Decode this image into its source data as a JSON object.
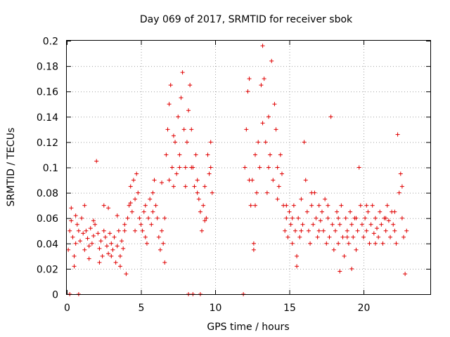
{
  "chart_data": {
    "type": "scatter",
    "title": "Day 069 of 2017, SRMTID for receiver sbok",
    "xlabel": "GPS time / hours",
    "ylabel": "SRMTID / TECUs",
    "xlim": [
      0,
      24.5
    ],
    "ylim": [
      0,
      0.2
    ],
    "xticks": [
      0,
      5,
      10,
      15,
      20
    ],
    "yticks": [
      0,
      0.02,
      0.04,
      0.06,
      0.08,
      0.1,
      0.12,
      0.14,
      0.16,
      0.18,
      0.2
    ],
    "xtick_labels": [
      "0",
      "5",
      "10",
      "15",
      "20"
    ],
    "ytick_labels": [
      "0",
      "0.02",
      "0.04",
      "0.06",
      "0.08",
      "0.1",
      "0.12",
      "0.14",
      "0.16",
      "0.18",
      "0.2"
    ],
    "grid": true,
    "marker": "+",
    "color": "#e00000",
    "series": [
      {
        "name": "SRMTID",
        "points": [
          [
            0.1,
            0.035
          ],
          [
            0.2,
            0.05
          ],
          [
            0.3,
            0.058
          ],
          [
            0.4,
            0.045
          ],
          [
            0.5,
            0.03
          ],
          [
            0.6,
            0.04
          ],
          [
            0.7,
            0.055
          ],
          [
            0.8,
            0.05
          ],
          [
            0.9,
            0.042
          ],
          [
            1.0,
            0.06
          ],
          [
            1.1,
            0.048
          ],
          [
            1.2,
            0.035
          ],
          [
            1.3,
            0.05
          ],
          [
            1.4,
            0.044
          ],
          [
            1.5,
            0.038
          ],
          [
            1.6,
            0.052
          ],
          [
            1.7,
            0.04
          ],
          [
            1.8,
            0.046
          ],
          [
            1.9,
            0.055
          ],
          [
            2.0,
            0.105
          ],
          [
            2.1,
            0.048
          ],
          [
            2.2,
            0.036
          ],
          [
            2.3,
            0.042
          ],
          [
            2.4,
            0.03
          ],
          [
            2.5,
            0.05
          ],
          [
            2.6,
            0.045
          ],
          [
            2.7,
            0.038
          ],
          [
            2.8,
            0.032
          ],
          [
            2.9,
            0.048
          ],
          [
            3.0,
            0.04
          ],
          [
            3.1,
            0.035
          ],
          [
            3.2,
            0.045
          ],
          [
            3.3,
            0.025
          ],
          [
            3.4,
            0.038
          ],
          [
            3.5,
            0.05
          ],
          [
            3.6,
            0.03
          ],
          [
            3.7,
            0.042
          ],
          [
            3.8,
            0.036
          ],
          [
            3.9,
            0.055
          ],
          [
            4.0,
            0.016
          ],
          [
            4.1,
            0.06
          ],
          [
            4.2,
            0.07
          ],
          [
            4.3,
            0.085
          ],
          [
            4.4,
            0.065
          ],
          [
            4.5,
            0.09
          ],
          [
            4.6,
            0.075
          ],
          [
            4.7,
            0.095
          ],
          [
            4.8,
            0.08
          ],
          [
            4.9,
            0.06
          ],
          [
            5.0,
            0.055
          ],
          [
            5.1,
            0.05
          ],
          [
            5.2,
            0.065
          ],
          [
            5.3,
            0.07
          ],
          [
            5.4,
            0.04
          ],
          [
            5.5,
            0.06
          ],
          [
            5.6,
            0.075
          ],
          [
            5.7,
            0.055
          ],
          [
            5.8,
            0.065
          ],
          [
            5.9,
            0.09
          ],
          [
            6.0,
            0.07
          ],
          [
            6.1,
            0.06
          ],
          [
            6.2,
            0.045
          ],
          [
            6.3,
            0.035
          ],
          [
            6.4,
            0.05
          ],
          [
            6.5,
            0.04
          ],
          [
            6.6,
            0.06
          ],
          [
            6.7,
            0.11
          ],
          [
            6.8,
            0.13
          ],
          [
            6.9,
            0.15
          ],
          [
            7.0,
            0.165
          ],
          [
            7.1,
            0.1
          ],
          [
            7.2,
            0.085
          ],
          [
            7.3,
            0.12
          ],
          [
            7.4,
            0.095
          ],
          [
            7.5,
            0.14
          ],
          [
            7.6,
            0.11
          ],
          [
            7.7,
            0.155
          ],
          [
            7.8,
            0.175
          ],
          [
            7.9,
            0.13
          ],
          [
            8.0,
            0.1
          ],
          [
            8.1,
            0.12
          ],
          [
            8.2,
            0.145
          ],
          [
            8.3,
            0.165
          ],
          [
            8.4,
            0.13
          ],
          [
            8.5,
            0.1
          ],
          [
            8.6,
            0.085
          ],
          [
            8.7,
            0.11
          ],
          [
            8.8,
            0.09
          ],
          [
            8.9,
            0.075
          ],
          [
            9.0,
            0.065
          ],
          [
            9.1,
            0.05
          ],
          [
            9.2,
            0.07
          ],
          [
            9.3,
            0.085
          ],
          [
            9.4,
            0.06
          ],
          [
            9.5,
            0.11
          ],
          [
            9.6,
            0.095
          ],
          [
            9.7,
            0.12
          ],
          [
            9.8,
            0.08
          ],
          [
            12.0,
            0.1
          ],
          [
            12.1,
            0.13
          ],
          [
            12.2,
            0.16
          ],
          [
            12.3,
            0.17
          ],
          [
            12.4,
            0.07
          ],
          [
            12.5,
            0.09
          ],
          [
            12.6,
            0.04
          ],
          [
            12.7,
            0.11
          ],
          [
            12.8,
            0.08
          ],
          [
            12.9,
            0.12
          ],
          [
            13.0,
            0.1
          ],
          [
            13.1,
            0.165
          ],
          [
            13.2,
            0.196
          ],
          [
            13.3,
            0.17
          ],
          [
            13.4,
            0.12
          ],
          [
            13.5,
            0.08
          ],
          [
            13.6,
            0.14
          ],
          [
            13.7,
            0.11
          ],
          [
            13.8,
            0.184
          ],
          [
            13.9,
            0.09
          ],
          [
            14.0,
            0.15
          ],
          [
            14.1,
            0.13
          ],
          [
            14.2,
            0.1
          ],
          [
            14.3,
            0.085
          ],
          [
            14.4,
            0.11
          ],
          [
            14.5,
            0.095
          ],
          [
            14.6,
            0.07
          ],
          [
            14.7,
            0.05
          ],
          [
            14.8,
            0.06
          ],
          [
            14.9,
            0.045
          ],
          [
            15.0,
            0.065
          ],
          [
            15.1,
            0.055
          ],
          [
            15.2,
            0.04
          ],
          [
            15.3,
            0.07
          ],
          [
            15.4,
            0.05
          ],
          [
            15.5,
            0.03
          ],
          [
            15.6,
            0.06
          ],
          [
            15.7,
            0.045
          ],
          [
            15.8,
            0.075
          ],
          [
            15.9,
            0.055
          ],
          [
            16.0,
            0.12
          ],
          [
            16.1,
            0.09
          ],
          [
            16.2,
            0.065
          ],
          [
            16.3,
            0.05
          ],
          [
            16.4,
            0.04
          ],
          [
            16.5,
            0.07
          ],
          [
            16.6,
            0.055
          ],
          [
            16.7,
            0.08
          ],
          [
            16.8,
            0.06
          ],
          [
            16.9,
            0.045
          ],
          [
            17.0,
            0.07
          ],
          [
            17.1,
            0.058
          ],
          [
            17.2,
            0.065
          ],
          [
            17.3,
            0.05
          ],
          [
            17.4,
            0.075
          ],
          [
            17.5,
            0.04
          ],
          [
            17.6,
            0.06
          ],
          [
            17.7,
            0.045
          ],
          [
            17.8,
            0.14
          ],
          [
            17.9,
            0.055
          ],
          [
            18.0,
            0.035
          ],
          [
            18.1,
            0.05
          ],
          [
            18.2,
            0.065
          ],
          [
            18.3,
            0.04
          ],
          [
            18.4,
            0.055
          ],
          [
            18.5,
            0.07
          ],
          [
            18.6,
            0.045
          ],
          [
            18.7,
            0.03
          ],
          [
            18.8,
            0.06
          ],
          [
            18.9,
            0.05
          ],
          [
            19.0,
            0.04
          ],
          [
            19.1,
            0.065
          ],
          [
            19.2,
            0.055
          ],
          [
            19.3,
            0.045
          ],
          [
            19.4,
            0.06
          ],
          [
            19.5,
            0.035
          ],
          [
            19.6,
            0.05
          ],
          [
            19.7,
            0.1
          ],
          [
            19.8,
            0.07
          ],
          [
            19.9,
            0.055
          ],
          [
            20.0,
            0.045
          ],
          [
            20.1,
            0.06
          ],
          [
            20.2,
            0.05
          ],
          [
            20.3,
            0.065
          ],
          [
            20.4,
            0.04
          ],
          [
            20.5,
            0.055
          ],
          [
            20.6,
            0.07
          ],
          [
            20.7,
            0.048
          ],
          [
            20.8,
            0.06
          ],
          [
            20.9,
            0.052
          ],
          [
            21.0,
            0.045
          ],
          [
            21.1,
            0.065
          ],
          [
            21.2,
            0.055
          ],
          [
            21.3,
            0.04
          ],
          [
            21.4,
            0.06
          ],
          [
            21.5,
            0.05
          ],
          [
            21.6,
            0.07
          ],
          [
            21.7,
            0.058
          ],
          [
            21.8,
            0.045
          ],
          [
            21.9,
            0.065
          ],
          [
            22.0,
            0.055
          ],
          [
            22.1,
            0.05
          ],
          [
            22.2,
            0.04
          ],
          [
            22.3,
            0.126
          ],
          [
            22.4,
            0.08
          ],
          [
            22.5,
            0.095
          ],
          [
            22.6,
            0.06
          ],
          [
            22.7,
            0.045
          ],
          [
            22.8,
            0.016
          ],
          [
            22.9,
            0.05
          ],
          [
            0.3,
            0.068
          ],
          [
            0.6,
            0.062
          ],
          [
            1.2,
            0.07
          ],
          [
            1.8,
            0.058
          ],
          [
            2.5,
            0.07
          ],
          [
            2.8,
            0.068
          ],
          [
            3.4,
            0.062
          ],
          [
            3.9,
            0.05
          ],
          [
            4.3,
            0.072
          ],
          [
            4.6,
            0.05
          ],
          [
            5.3,
            0.045
          ],
          [
            5.8,
            0.08
          ],
          [
            6.4,
            0.088
          ],
          [
            6.9,
            0.09
          ],
          [
            7.2,
            0.125
          ],
          [
            7.6,
            0.1
          ],
          [
            8.0,
            0.085
          ],
          [
            8.4,
            0.1
          ],
          [
            8.8,
            0.08
          ],
          [
            9.3,
            0.058
          ],
          [
            9.7,
            0.1
          ],
          [
            12.3,
            0.09
          ],
          [
            12.7,
            0.07
          ],
          [
            13.2,
            0.135
          ],
          [
            13.6,
            0.1
          ],
          [
            14.2,
            0.075
          ],
          [
            14.8,
            0.07
          ],
          [
            15.2,
            0.06
          ],
          [
            15.8,
            0.05
          ],
          [
            16.5,
            0.08
          ],
          [
            17.0,
            0.05
          ],
          [
            17.6,
            0.07
          ],
          [
            18.3,
            0.06
          ],
          [
            18.9,
            0.045
          ],
          [
            19.5,
            0.06
          ],
          [
            20.2,
            0.07
          ],
          [
            20.8,
            0.04
          ],
          [
            21.5,
            0.06
          ],
          [
            22.1,
            0.065
          ],
          [
            22.6,
            0.085
          ],
          [
            0.5,
            0.022
          ],
          [
            1.5,
            0.028
          ],
          [
            2.2,
            0.025
          ],
          [
            3.0,
            0.03
          ],
          [
            3.6,
            0.022
          ],
          [
            6.6,
            0.025
          ],
          [
            12.6,
            0.035
          ],
          [
            15.5,
            0.022
          ],
          [
            18.4,
            0.018
          ],
          [
            19.2,
            0.02
          ],
          [
            0.2,
            0.0
          ],
          [
            0.8,
            0.0
          ],
          [
            8.2,
            0.0
          ],
          [
            8.5,
            0.0
          ],
          [
            9.0,
            0.0
          ],
          [
            11.9,
            0.0
          ]
        ]
      }
    ]
  }
}
